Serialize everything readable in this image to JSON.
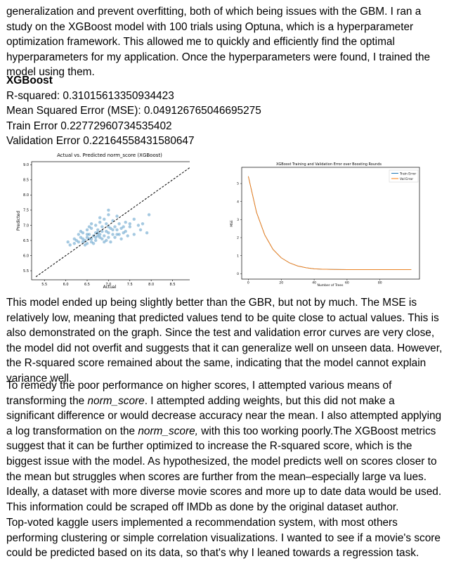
{
  "paragraphs": {
    "p0": "generalization and prevent overfitting, both of which being issues with the GBM. I ran a study on the XGBoost model with 100 trials using Optuna, which is a hyperparameter optimization framework. This allowed me to quickly and efficiently find the optimal hyperparameters for my application. Once the hyperparameters were found, I trained the model using them.",
    "p1": "This model ended up being slightly better than the GBR, but not by much. The MSE is relatively low, meaning that predicted values tend to be quite close to actual values. This is also demonstrated on the graph. Since the test and validation error curves are very close, the model did not overfit and suggests that it can generalize well on unseen data. However, the R-squared score remained about the same, indicating that the model cannot explain variance well.",
    "p2_a": "To remedy the poor performance on higher scores, I attempted various means of transforming the ",
    "p2_em1": "norm_score",
    "p2_b": ". I attempted adding weights, but this did not make a significant difference or would decrease accuracy near the mean. I also attempted applying a log transformation on the ",
    "p2_em2": "norm_score,",
    "p2_c": " with this too working poorly.The XGBoost metrics suggest that it can be further optimized to increase the R-squared score, which is the biggest issue with the model. As hypothesized, the model predicts well on scores closer to the mean but struggles when scores are further from the mean–especially large va lues. Ideally, a dataset with more diverse movie scores and more up to date data would be used. This information could be scraped off IMDb as done by the original dataset author.",
    "p3": "Top-voted kaggle users implemented a recommendation system, with most others performing clustering or simple correlation visualizations. I wanted to see if a movie's score could be predicted based on its data, so that's why I leaned towards a regression task."
  },
  "metrics": {
    "heading": "XGBoost",
    "r2": "R-squared: 0.31015613350934423",
    "mse": "Mean Squared Error (MSE): 0.049126765046695275",
    "train": "Train Error 0.22772960734535402",
    "val": "Validation Error 0.22164558431580647"
  },
  "chart_data": [
    {
      "type": "scatter",
      "title": "Actual vs. Predicted norm_score (XGBoost)",
      "xlabel": "Actual",
      "ylabel": "Predicted",
      "xlim": [
        5.2,
        9.1
      ],
      "ylim": [
        5.2,
        9.1
      ],
      "xticks": [
        "5.5",
        "6.0",
        "6.5",
        "7.0",
        "7.5",
        "8.0",
        "8.5",
        "9.0"
      ],
      "yticks": [
        "5.5",
        "6.0",
        "6.5",
        "7.0",
        "7.5",
        "8.0",
        "8.5",
        "9.0"
      ],
      "point_color": "#1f77b4",
      "reference_line": {
        "x": [
          5.3,
          9.0
        ],
        "y": [
          5.3,
          9.0
        ],
        "style": "dashed",
        "color": "#000000"
      },
      "points": [
        [
          6.1,
          6.35
        ],
        [
          6.2,
          6.4
        ],
        [
          6.25,
          6.5
        ],
        [
          6.3,
          6.45
        ],
        [
          6.35,
          6.6
        ],
        [
          6.4,
          6.55
        ],
        [
          6.45,
          6.5
        ],
        [
          6.5,
          6.6
        ],
        [
          6.5,
          6.4
        ],
        [
          6.55,
          6.7
        ],
        [
          6.6,
          6.55
        ],
        [
          6.6,
          6.45
        ],
        [
          6.65,
          6.65
        ],
        [
          6.7,
          6.6
        ],
        [
          6.7,
          6.5
        ],
        [
          6.75,
          6.75
        ],
        [
          6.8,
          6.6
        ],
        [
          6.8,
          6.7
        ],
        [
          6.85,
          6.55
        ],
        [
          6.9,
          6.65
        ],
        [
          6.95,
          6.8
        ],
        [
          7.0,
          6.6
        ],
        [
          7.0,
          6.75
        ],
        [
          7.05,
          6.9
        ],
        [
          7.1,
          6.7
        ],
        [
          7.15,
          6.6
        ],
        [
          7.2,
          6.85
        ],
        [
          7.25,
          6.7
        ],
        [
          7.3,
          6.9
        ],
        [
          7.35,
          6.75
        ],
        [
          7.4,
          6.8
        ],
        [
          7.5,
          6.95
        ],
        [
          7.6,
          6.7
        ],
        [
          7.7,
          7.0
        ],
        [
          7.9,
          6.75
        ],
        [
          6.4,
          6.75
        ],
        [
          6.5,
          6.85
        ],
        [
          6.6,
          6.9
        ],
        [
          6.7,
          7.0
        ],
        [
          6.8,
          7.1
        ],
        [
          6.9,
          7.2
        ],
        [
          7.0,
          7.35
        ],
        [
          7.1,
          7.15
        ],
        [
          6.95,
          7.05
        ],
        [
          6.85,
          6.95
        ],
        [
          7.2,
          7.3
        ],
        [
          7.4,
          7.1
        ],
        [
          7.6,
          7.2
        ],
        [
          7.8,
          7.05
        ],
        [
          7.95,
          7.35
        ],
        [
          6.3,
          6.7
        ],
        [
          6.55,
          6.95
        ],
        [
          6.75,
          6.85
        ],
        [
          6.95,
          6.5
        ],
        [
          7.05,
          6.45
        ],
        [
          7.3,
          6.55
        ],
        [
          6.2,
          6.55
        ],
        [
          6.45,
          6.35
        ],
        [
          6.65,
          6.4
        ],
        [
          6.9,
          6.45
        ],
        [
          7.15,
          6.95
        ],
        [
          7.5,
          7.05
        ],
        [
          7.75,
          6.85
        ],
        [
          6.35,
          6.8
        ],
        [
          6.6,
          7.05
        ],
        [
          6.8,
          7.25
        ],
        [
          7.0,
          7.5
        ],
        [
          7.25,
          7.05
        ],
        [
          7.45,
          6.65
        ],
        [
          6.05,
          6.45
        ],
        [
          6.5,
          6.7
        ],
        [
          6.7,
          6.75
        ],
        [
          6.85,
          6.8
        ],
        [
          7.1,
          6.85
        ],
        [
          7.35,
          6.95
        ],
        [
          6.4,
          6.45
        ],
        [
          6.55,
          6.55
        ],
        [
          6.75,
          6.65
        ],
        [
          7.0,
          6.95
        ],
        [
          7.2,
          6.7
        ]
      ]
    },
    {
      "type": "line",
      "title": "XGBoost Training and Validation Error over Boosting Rounds",
      "xlabel": "Number of Trees",
      "ylabel": "MSE",
      "xlim": [
        -4,
        104
      ],
      "ylim": [
        -0.3,
        5.9
      ],
      "xticks": [
        0,
        20,
        40,
        60,
        80
      ],
      "yticks": [
        0,
        1,
        2,
        3,
        4,
        5
      ],
      "legend": "top-right",
      "series": [
        {
          "name": "Train Error",
          "color": "#1f77b4"
        },
        {
          "name": "Val Error",
          "color": "#ff7f0e"
        }
      ],
      "x": [
        0,
        5,
        10,
        15,
        20,
        25,
        30,
        35,
        40,
        45,
        50,
        60,
        70,
        80,
        90,
        99
      ],
      "values": [
        5.4,
        3.4,
        2.15,
        1.35,
        0.88,
        0.6,
        0.43,
        0.33,
        0.27,
        0.25,
        0.24,
        0.23,
        0.23,
        0.23,
        0.23,
        0.23
      ]
    }
  ]
}
